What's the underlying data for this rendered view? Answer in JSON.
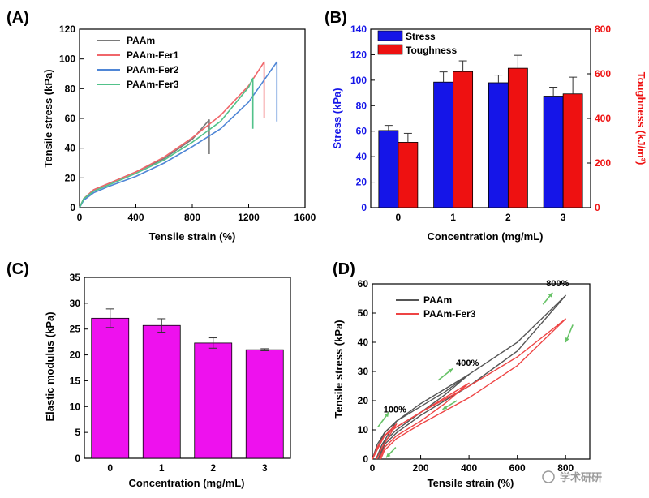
{
  "figure": {
    "watermark": "学术研研",
    "colors": {
      "PAAm": "#7a7a7a",
      "PAAm-Fer1": "#f0666a",
      "PAAm-Fer2": "#4f86d6",
      "PAAm-Fer3": "#52c28a",
      "stress": "#1515e8",
      "toughness": "#ee1111",
      "modulus": "#ee11ee",
      "D_PAAm": "#555555",
      "D_Fer3": "#ee4444",
      "arrow": "#66c266"
    }
  },
  "chart_data": [
    {
      "panel": "(A)",
      "type": "line",
      "xlabel": "Tensile strain (%)",
      "ylabel": "Tensile stress (kPa)",
      "xlim": [
        0,
        1600
      ],
      "ylim": [
        0,
        120
      ],
      "xticks": [
        "0",
        "400",
        "800",
        "1200",
        "1600"
      ],
      "yticks": [
        "0",
        "20",
        "40",
        "60",
        "80",
        "100",
        "120"
      ],
      "legend_position": "top-left",
      "series": [
        {
          "name": "PAAm",
          "color_key": "PAAm",
          "x": [
            0,
            30,
            100,
            200,
            400,
            600,
            800,
            920,
            920
          ],
          "y": [
            0,
            6,
            12,
            16,
            24,
            33,
            46,
            59,
            36
          ]
        },
        {
          "name": "PAAm-Fer1",
          "color_key": "PAAm-Fer1",
          "x": [
            0,
            30,
            100,
            200,
            400,
            600,
            800,
            1000,
            1200,
            1310,
            1310
          ],
          "y": [
            0,
            6,
            12,
            16,
            24,
            34,
            47,
            62,
            82,
            98,
            60
          ]
        },
        {
          "name": "PAAm-Fer2",
          "color_key": "PAAm-Fer2",
          "x": [
            0,
            30,
            100,
            200,
            400,
            600,
            800,
            1000,
            1200,
            1400,
            1400
          ],
          "y": [
            0,
            5,
            10,
            14,
            21,
            30,
            41,
            53,
            71,
            98,
            58
          ]
        },
        {
          "name": "PAAm-Fer3",
          "color_key": "PAAm-Fer3",
          "x": [
            0,
            30,
            100,
            200,
            400,
            600,
            800,
            1000,
            1200,
            1230,
            1230
          ],
          "y": [
            0,
            6,
            11,
            15,
            23,
            32,
            44,
            58,
            81,
            87,
            53
          ]
        }
      ]
    },
    {
      "panel": "(B)",
      "type": "bar",
      "xlabel": "Concentration (mg/mL)",
      "ylabel": "Stress (kPa)",
      "ylabel_right": "Toughness (kJ/m³)",
      "categories": [
        "0",
        "1",
        "2",
        "3"
      ],
      "ylim": [
        0,
        140
      ],
      "ylim_right": [
        0,
        800
      ],
      "yticks": [
        "0",
        "20",
        "40",
        "60",
        "80",
        "100",
        "120",
        "140"
      ],
      "yticks_right": [
        "0",
        "200",
        "400",
        "600",
        "800"
      ],
      "legend_position": "top-left",
      "series": [
        {
          "name": "Stress",
          "axis": "left",
          "color_key": "stress",
          "values": [
            60.5,
            98.5,
            98,
            87.5
          ],
          "errors": [
            4,
            8,
            6,
            7
          ]
        },
        {
          "name": "Toughness",
          "axis": "right",
          "color_key": "toughness",
          "values": [
            293,
            610,
            625,
            510
          ],
          "errors": [
            40,
            48,
            58,
            75
          ]
        }
      ]
    },
    {
      "panel": "(C)",
      "type": "bar",
      "xlabel": "Concentration (mg/mL)",
      "ylabel": "Elastic modulus (kPa)",
      "categories": [
        "0",
        "1",
        "2",
        "3"
      ],
      "ylim": [
        0,
        35
      ],
      "yticks": [
        "0",
        "5",
        "10",
        "15",
        "20",
        "25",
        "30",
        "35"
      ],
      "series": [
        {
          "color_key": "modulus",
          "values": [
            27.1,
            25.7,
            22.3,
            21.0
          ],
          "errors": [
            1.8,
            1.3,
            1.0,
            0.2
          ]
        }
      ]
    },
    {
      "panel": "(D)",
      "type": "line",
      "xlabel": "Tensile strain (%)",
      "ylabel": "Tensile stress (kPa)",
      "xlim": [
        0,
        900
      ],
      "ylim": [
        0,
        60
      ],
      "xticks": [
        "0",
        "200",
        "400",
        "600",
        "800"
      ],
      "yticks": [
        "0",
        "10",
        "20",
        "30",
        "40",
        "50",
        "60"
      ],
      "legend_position": "top-left",
      "annotations": [
        "100%",
        "400%",
        "800%"
      ],
      "series": [
        {
          "name": "PAAm",
          "color_key": "D_PAAm",
          "loops": [
            {
              "load": [
                [
                  0,
                  0
                ],
                [
                  20,
                  5
                ],
                [
                  50,
                  9
                ],
                [
                  100,
                  13
                ]
              ],
              "unload": [
                [
                  100,
                  13
                ],
                [
                  70,
                  9
                ],
                [
                  40,
                  5
                ],
                [
                  15,
                  0
                ]
              ]
            },
            {
              "load": [
                [
                  0,
                  0
                ],
                [
                  50,
                  9
                ],
                [
                  100,
                  13
                ],
                [
                  200,
                  18
                ],
                [
                  300,
                  23
                ],
                [
                  400,
                  29
                ]
              ],
              "unload": [
                [
                  400,
                  29
                ],
                [
                  300,
                  22
                ],
                [
                  200,
                  16
                ],
                [
                  100,
                  10
                ],
                [
                  50,
                  6
                ],
                [
                  25,
                  0
                ]
              ]
            },
            {
              "load": [
                [
                  0,
                  0
                ],
                [
                  50,
                  9
                ],
                [
                  100,
                  13
                ],
                [
                  200,
                  19
                ],
                [
                  400,
                  29
                ],
                [
                  600,
                  40
                ],
                [
                  800,
                  56
                ]
              ],
              "unload": [
                [
                  800,
                  56
                ],
                [
                  600,
                  37
                ],
                [
                  400,
                  25
                ],
                [
                  200,
                  15
                ],
                [
                  100,
                  9
                ],
                [
                  50,
                  5
                ],
                [
                  30,
                  0
                ]
              ]
            }
          ]
        },
        {
          "name": "PAAm-Fer3",
          "color_key": "D_Fer3",
          "loops": [
            {
              "load": [
                [
                  0,
                  0
                ],
                [
                  20,
                  4
                ],
                [
                  50,
                  8
                ],
                [
                  100,
                  12
                ]
              ],
              "unload": [
                [
                  100,
                  12
                ],
                [
                  70,
                  8
                ],
                [
                  40,
                  4
                ],
                [
                  18,
                  0
                ]
              ]
            },
            {
              "load": [
                [
                  0,
                  0
                ],
                [
                  50,
                  8
                ],
                [
                  100,
                  11
                ],
                [
                  200,
                  16
                ],
                [
                  300,
                  21
                ],
                [
                  400,
                  26
                ]
              ],
              "unload": [
                [
                  400,
                  26
                ],
                [
                  300,
                  19
                ],
                [
                  200,
                  13
                ],
                [
                  100,
                  8
                ],
                [
                  50,
                  4
                ],
                [
                  30,
                  0
                ]
              ]
            },
            {
              "load": [
                [
                  0,
                  0
                ],
                [
                  50,
                  8
                ],
                [
                  100,
                  11
                ],
                [
                  200,
                  16
                ],
                [
                  400,
                  25
                ],
                [
                  600,
                  35
                ],
                [
                  800,
                  48
                ]
              ],
              "unload": [
                [
                  800,
                  48
                ],
                [
                  600,
                  32
                ],
                [
                  400,
                  21
                ],
                [
                  200,
                  12
                ],
                [
                  100,
                  7
                ],
                [
                  50,
                  3
                ],
                [
                  35,
                  0
                ]
              ]
            }
          ]
        }
      ]
    }
  ]
}
